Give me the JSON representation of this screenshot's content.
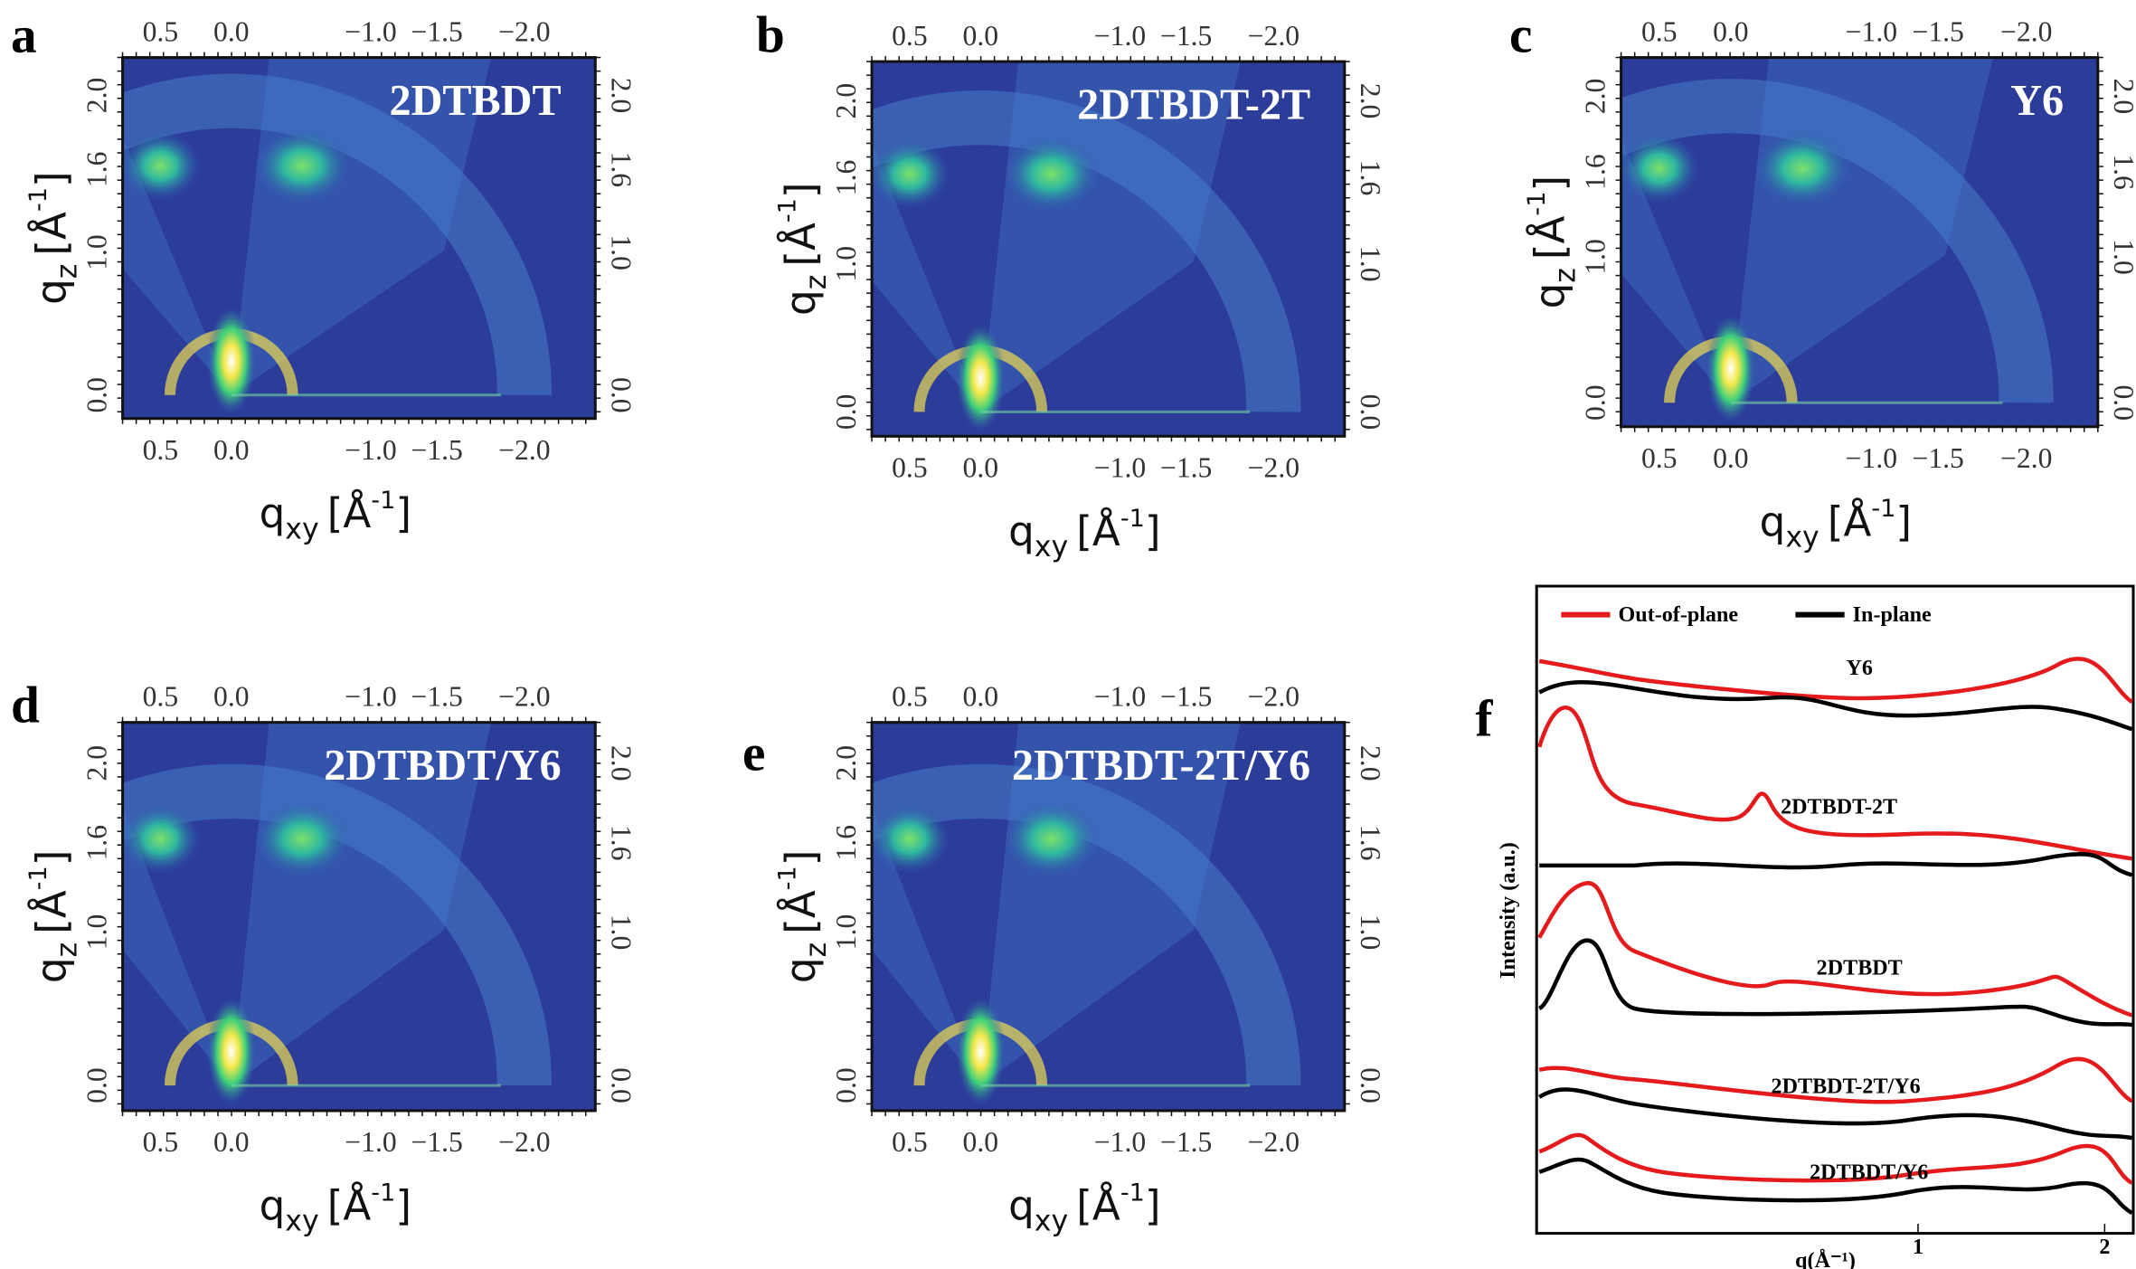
{
  "panels": [
    {
      "letter": "a",
      "title": "2DTBDT"
    },
    {
      "letter": "b",
      "title": "2DTBDT-2T"
    },
    {
      "letter": "c",
      "title": "Y6"
    },
    {
      "letter": "d",
      "title": "2DTBDT/Y6"
    },
    {
      "letter": "e",
      "title": "2DTBDT-2T/Y6"
    }
  ],
  "x_ticks": [
    "0.5",
    "0.0",
    "−1.0",
    "−1.5",
    "−2.0"
  ],
  "y_ticks": [
    "0.0",
    "1.0",
    "1.6",
    "2.0"
  ],
  "x_axis_label": {
    "symbol": "q",
    "sub": "xy",
    "unit": "[Å",
    "exp": "-1",
    "close": "]"
  },
  "y_axis_label": {
    "symbol": "q",
    "sub": "z",
    "unit": "[Å",
    "exp": "-1",
    "close": "]"
  },
  "profile": {
    "letter": "f",
    "legend": [
      "Out-of-plane",
      "In-plane"
    ],
    "y_label": "Intensity (a.u.)",
    "x_label": "q(Å⁻¹)",
    "x_ticks": [
      "1",
      "2"
    ],
    "curve_labels": [
      "Y6",
      "2DTBDT-2T",
      "2DTBDT",
      "2DTBDT-2T/Y6",
      "2DTBDT/Y6"
    ]
  }
}
